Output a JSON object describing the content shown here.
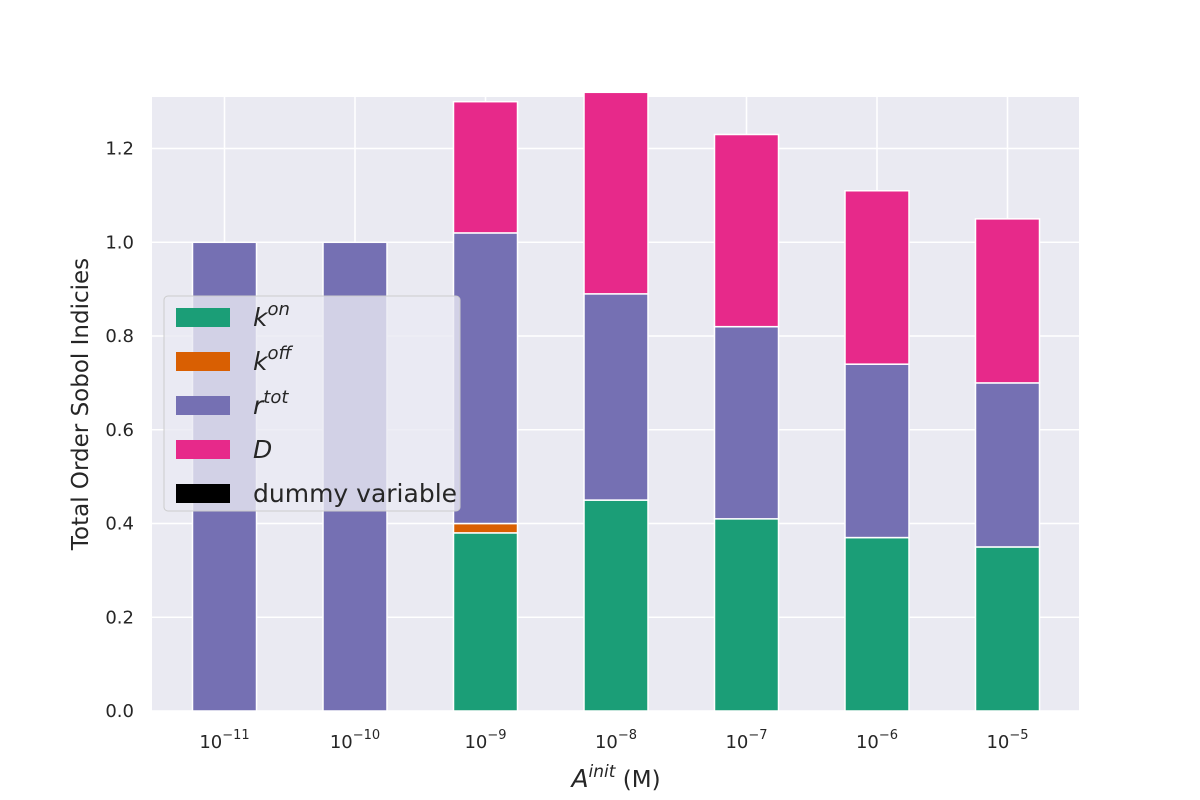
{
  "chart_data": {
    "type": "bar",
    "stacked": true,
    "categories": [
      "10^-11",
      "10^-10",
      "10^-9",
      "10^-8",
      "10^-7",
      "10^-6",
      "10^-5"
    ],
    "category_base": "10",
    "category_exponents": [
      "−11",
      "−10",
      "−9",
      "−8",
      "−7",
      "−6",
      "−5"
    ],
    "series": [
      {
        "name": "k^on",
        "name_base": "k",
        "name_sup": "on",
        "color": "#1b9e77",
        "values": [
          0.0,
          0.0,
          0.38,
          0.45,
          0.41,
          0.37,
          0.35
        ]
      },
      {
        "name": "k^off",
        "name_base": "k",
        "name_sup": "off",
        "color": "#d95f02",
        "values": [
          0.0,
          0.0,
          0.02,
          0.0,
          0.0,
          0.0,
          0.0
        ]
      },
      {
        "name": "r^tot",
        "name_base": "r",
        "name_sup": "tot",
        "color": "#7570b3",
        "values": [
          1.0,
          1.0,
          0.62,
          0.44,
          0.41,
          0.37,
          0.35
        ]
      },
      {
        "name": "D",
        "name_base": "D",
        "name_sup": "",
        "color": "#e7298a",
        "values": [
          0.0,
          0.0,
          0.28,
          0.43,
          0.41,
          0.37,
          0.35
        ]
      },
      {
        "name": "dummy variable",
        "name_base": "dummy variable",
        "name_sup": "",
        "color": "#000000",
        "values": [
          0.0,
          0.0,
          0.0,
          0.0,
          0.0,
          0.0,
          0.0
        ]
      }
    ],
    "ylabel": "Total Order Sobol Indicies",
    "xlabel_base": "A",
    "xlabel_sup": "init",
    "xlabel_unit": " (M)",
    "yticks": [
      "0.0",
      "0.2",
      "0.4",
      "0.6",
      "0.8",
      "1.0",
      "1.2"
    ],
    "ytick_values": [
      0,
      0.2,
      0.4,
      0.6,
      0.8,
      1.0,
      1.2
    ],
    "ylim": [
      0,
      1.31
    ],
    "grid": true,
    "legend_position": "center-left",
    "background_color": "#eaeaf2"
  }
}
